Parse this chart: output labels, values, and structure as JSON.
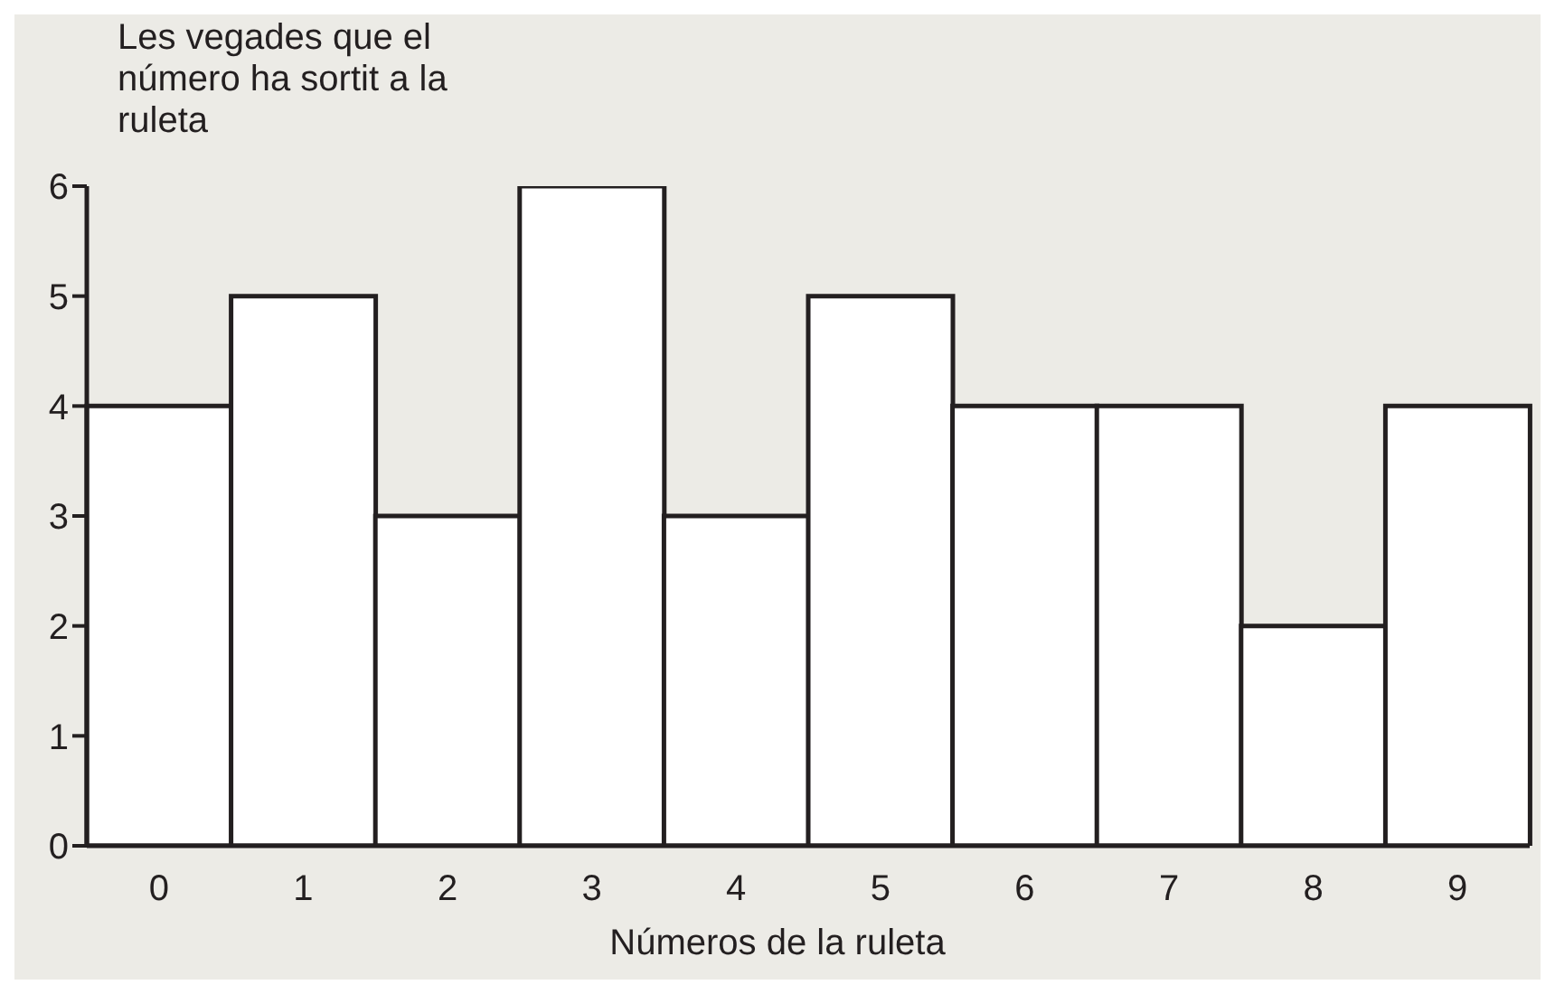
{
  "chart_data": {
    "type": "bar",
    "ylabel": "Les vegades que el número ha sortit a la ruleta",
    "xlabel": "Números de la ruleta",
    "categories": [
      "0",
      "1",
      "2",
      "3",
      "4",
      "5",
      "6",
      "7",
      "8",
      "9"
    ],
    "values": [
      4,
      5,
      3,
      6,
      3,
      5,
      4,
      4,
      2,
      4
    ],
    "color": "#ffffff",
    "ylim": [
      0,
      6
    ],
    "yticks": [
      0,
      1,
      2,
      3,
      4,
      5,
      6
    ],
    "grid": false
  }
}
